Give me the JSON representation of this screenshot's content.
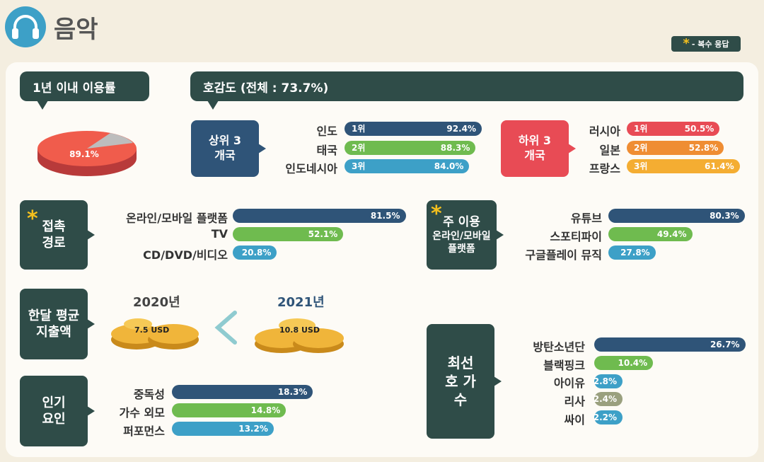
{
  "header": {
    "title": "음악",
    "legend_star": "*",
    "legend_text": "- 복수 응답"
  },
  "usage": {
    "title": "1년 이내 이용률",
    "value_label": "89.1%"
  },
  "favor": {
    "title": "호감도 (전체 : 73.7%)",
    "top_title": "상위 3개국",
    "bottom_title": "하위 3개국"
  },
  "access": {
    "title": "접촉 경로"
  },
  "platform": {
    "title_1": "주 이용",
    "title_2": "온라인/모바일",
    "title_3": "플랫폼"
  },
  "spending": {
    "title": "한달 평균 지출액",
    "year_2020": "2020년",
    "year_2021": "2021년",
    "value_2020": "7.5 USD",
    "value_2021": "10.8 USD"
  },
  "popularity": {
    "title": "인기 요인"
  },
  "singer": {
    "title": "최선호 가수"
  },
  "colors": {
    "dark_teal": "#2f4c48",
    "navy": "#2f5478",
    "green": "#6fbb4f",
    "blue": "#3da0c7",
    "red": "#e84b55",
    "orange": "#ef8d33",
    "star_yellow": "#f4c01d"
  },
  "chart_data": [
    {
      "type": "pie",
      "title": "1년 이내 이용률",
      "values": [
        89.1
      ],
      "value_labels": [
        "89.1%"
      ]
    },
    {
      "type": "bar",
      "title": "상위 3개국",
      "categories": [
        "인도",
        "태국",
        "인도네시아"
      ],
      "ranks": [
        "1위",
        "2위",
        "3위"
      ],
      "values": [
        92.4,
        88.3,
        84.0
      ],
      "value_labels": [
        "92.4%",
        "88.3%",
        "84.0%"
      ]
    },
    {
      "type": "bar",
      "title": "하위 3개국",
      "categories": [
        "러시아",
        "일본",
        "프랑스"
      ],
      "ranks": [
        "1위",
        "2위",
        "3위"
      ],
      "values": [
        50.5,
        52.8,
        61.4
      ],
      "value_labels": [
        "50.5%",
        "52.8%",
        "61.4%"
      ]
    },
    {
      "type": "bar",
      "title": "접촉 경로",
      "categories": [
        "온라인/모바일 플랫폼",
        "TV",
        "CD/DVD/비디오"
      ],
      "values": [
        81.5,
        52.1,
        20.8
      ],
      "value_labels": [
        "81.5%",
        "52.1%",
        "20.8%"
      ]
    },
    {
      "type": "bar",
      "title": "주 이용 온라인/모바일 플랫폼",
      "categories": [
        "유튜브",
        "스포티파이",
        "구글플레이 뮤직"
      ],
      "values": [
        80.3,
        49.4,
        27.8
      ],
      "value_labels": [
        "80.3%",
        "49.4%",
        "27.8%"
      ]
    },
    {
      "type": "bar",
      "title": "한달 평균 지출액",
      "categories": [
        "2020년",
        "2021년"
      ],
      "values": [
        7.5,
        10.8
      ],
      "value_labels": [
        "7.5 USD",
        "10.8 USD"
      ]
    },
    {
      "type": "bar",
      "title": "인기 요인",
      "categories": [
        "중독성",
        "가수 외모",
        "퍼포먼스"
      ],
      "values": [
        18.3,
        14.8,
        13.2
      ],
      "value_labels": [
        "18.3%",
        "14.8%",
        "13.2%"
      ]
    },
    {
      "type": "bar",
      "title": "최선호 가수",
      "categories": [
        "방탄소년단",
        "블랙핑크",
        "아이유",
        "리사",
        "싸이"
      ],
      "values": [
        26.7,
        10.4,
        2.8,
        2.4,
        2.2
      ],
      "value_labels": [
        "26.7%",
        "10.4%",
        "2.8%",
        "2.4%",
        "2.2%"
      ]
    }
  ]
}
